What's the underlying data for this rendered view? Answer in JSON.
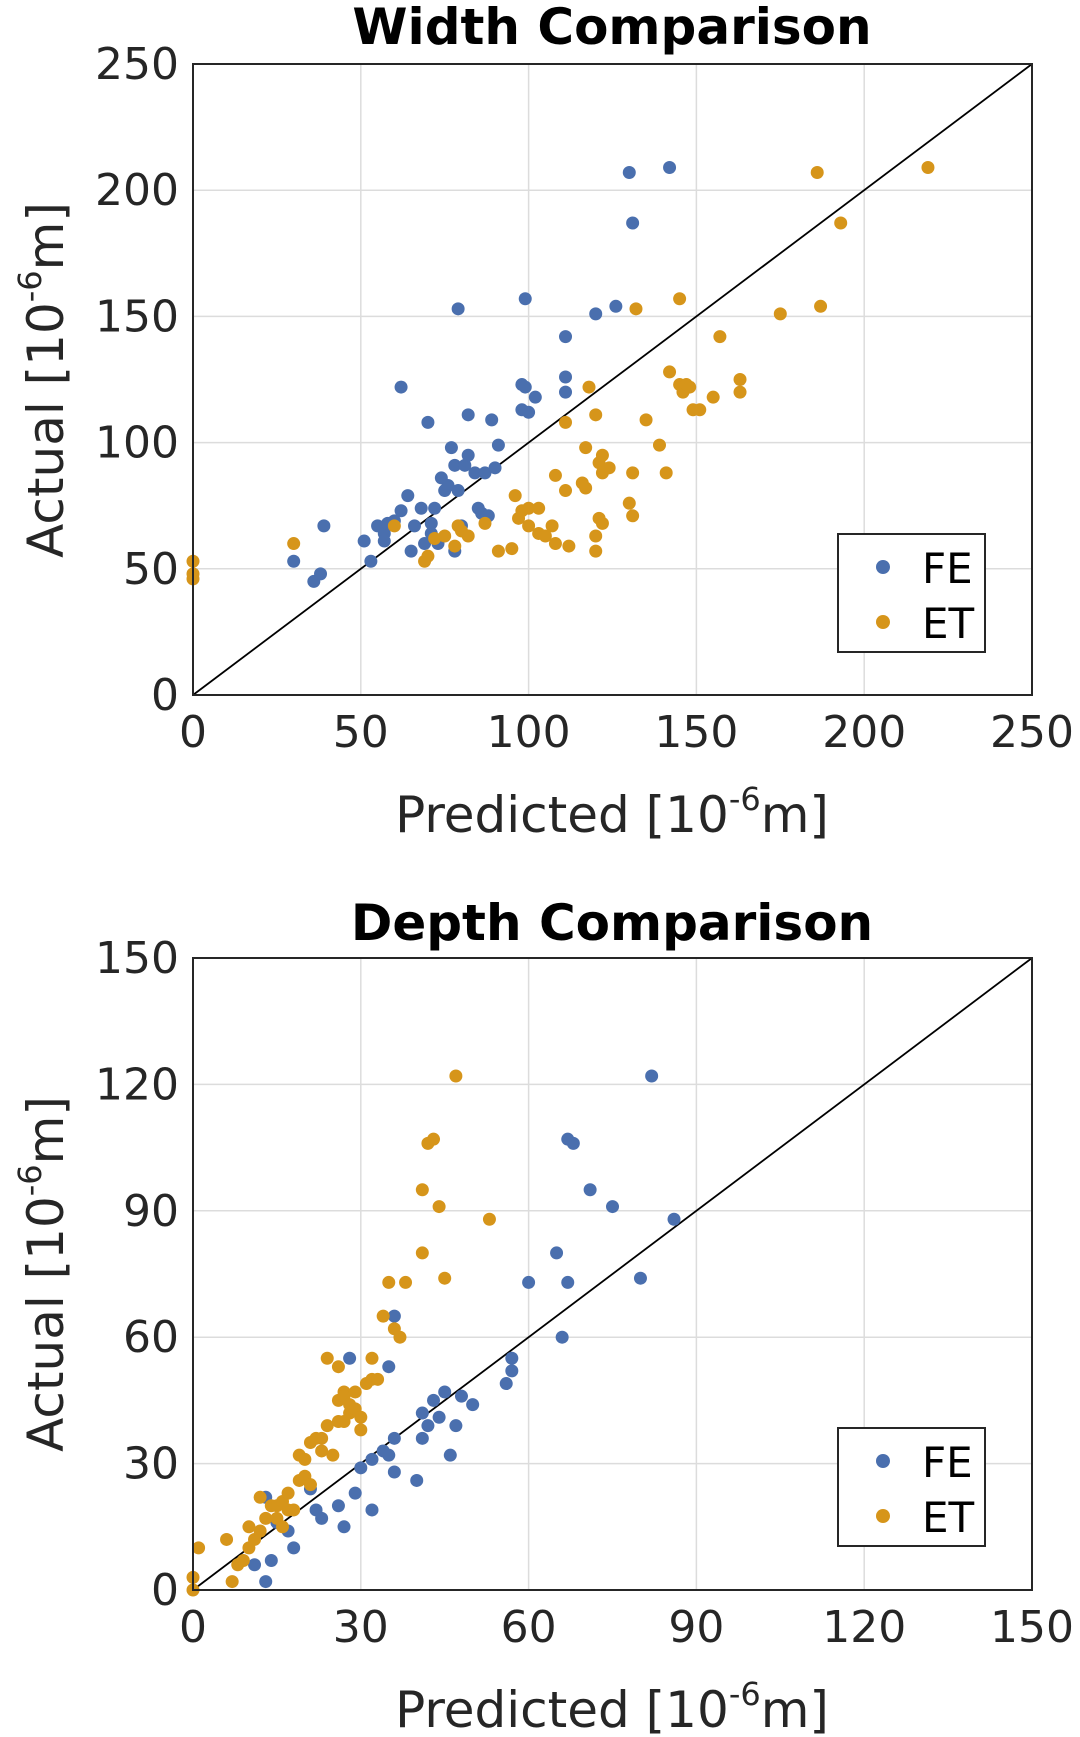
{
  "colors": {
    "FE": "#4a6fae",
    "ET": "#d6951a"
  },
  "chart_data": [
    {
      "type": "scatter",
      "title": "Width Comparison",
      "xlabel": "Predicted [10",
      "xlabel_sup": "-6",
      "xlabel_end": "m]",
      "ylabel": "Actual [10",
      "ylabel_sup": "-6",
      "ylabel_end": "m]",
      "xlim": [
        0,
        250
      ],
      "ylim": [
        0,
        250
      ],
      "xticks": [
        0,
        50,
        100,
        150,
        200,
        250
      ],
      "yticks": [
        0,
        50,
        100,
        150,
        200,
        250
      ],
      "grid": true,
      "reference_line": "y = x",
      "legend": {
        "position": "bottom-right",
        "entries": [
          "FE",
          "ET"
        ]
      },
      "series": [
        {
          "name": "FE",
          "color": "#4a6fae",
          "points": [
            [
              30,
              53
            ],
            [
              36,
              45
            ],
            [
              38,
              48
            ],
            [
              39,
              67
            ],
            [
              51,
              61
            ],
            [
              53,
              53
            ],
            [
              55,
              67
            ],
            [
              57,
              64
            ],
            [
              57,
              61
            ],
            [
              58,
              68
            ],
            [
              60,
              69
            ],
            [
              62,
              73
            ],
            [
              62,
              122
            ],
            [
              64,
              79
            ],
            [
              65,
              57
            ],
            [
              66,
              67
            ],
            [
              68,
              74
            ],
            [
              69,
              60
            ],
            [
              70,
              108
            ],
            [
              71,
              64
            ],
            [
              71,
              68
            ],
            [
              72,
              74
            ],
            [
              73,
              60
            ],
            [
              74,
              86
            ],
            [
              75,
              81
            ],
            [
              76,
              83
            ],
            [
              77,
              98
            ],
            [
              78,
              57
            ],
            [
              78,
              91
            ],
            [
              79,
              153
            ],
            [
              79,
              81
            ],
            [
              80,
              67
            ],
            [
              81,
              91
            ],
            [
              82,
              111
            ],
            [
              82,
              95
            ],
            [
              84,
              88
            ],
            [
              85,
              74
            ],
            [
              86,
              72
            ],
            [
              87,
              88
            ],
            [
              88,
              71
            ],
            [
              89,
              109
            ],
            [
              90,
              90
            ],
            [
              91,
              99
            ],
            [
              98,
              113
            ],
            [
              98,
              123
            ],
            [
              99,
              122
            ],
            [
              99,
              157
            ],
            [
              100,
              112
            ],
            [
              102,
              118
            ],
            [
              111,
              142
            ],
            [
              111,
              126
            ],
            [
              111,
              120
            ],
            [
              120,
              151
            ],
            [
              126,
              154
            ],
            [
              130,
              207
            ],
            [
              131,
              187
            ],
            [
              142,
              209
            ]
          ]
        },
        {
          "name": "ET",
          "color": "#d6951a",
          "points": [
            [
              0,
              53
            ],
            [
              0,
              48
            ],
            [
              0,
              46
            ],
            [
              30,
              60
            ],
            [
              60,
              67
            ],
            [
              69,
              53
            ],
            [
              70,
              55
            ],
            [
              72,
              62
            ],
            [
              75,
              63
            ],
            [
              78,
              59
            ],
            [
              79,
              67
            ],
            [
              80,
              65
            ],
            [
              82,
              63
            ],
            [
              87,
              68
            ],
            [
              91,
              57
            ],
            [
              95,
              58
            ],
            [
              96,
              79
            ],
            [
              97,
              70
            ],
            [
              98,
              73
            ],
            [
              100,
              74
            ],
            [
              100,
              67
            ],
            [
              103,
              64
            ],
            [
              103,
              74
            ],
            [
              105,
              63
            ],
            [
              107,
              67
            ],
            [
              108,
              60
            ],
            [
              108,
              87
            ],
            [
              111,
              81
            ],
            [
              111,
              108
            ],
            [
              112,
              59
            ],
            [
              116,
              84
            ],
            [
              117,
              98
            ],
            [
              117,
              82
            ],
            [
              118,
              122
            ],
            [
              120,
              57
            ],
            [
              120,
              63
            ],
            [
              120,
              111
            ],
            [
              121,
              92
            ],
            [
              121,
              70
            ],
            [
              122,
              68
            ],
            [
              122,
              88
            ],
            [
              122,
              95
            ],
            [
              124,
              90
            ],
            [
              130,
              76
            ],
            [
              131,
              88
            ],
            [
              131,
              71
            ],
            [
              132,
              153
            ],
            [
              135,
              109
            ],
            [
              139,
              99
            ],
            [
              141,
              88
            ],
            [
              142,
              128
            ],
            [
              145,
              157
            ],
            [
              145,
              123
            ],
            [
              146,
              120
            ],
            [
              147,
              123
            ],
            [
              148,
              122
            ],
            [
              149,
              113
            ],
            [
              151,
              113
            ],
            [
              155,
              118
            ],
            [
              157,
              142
            ],
            [
              163,
              125
            ],
            [
              163,
              120
            ],
            [
              175,
              151
            ],
            [
              186,
              207
            ],
            [
              187,
              154
            ],
            [
              193,
              187
            ],
            [
              219,
              209
            ]
          ]
        }
      ]
    },
    {
      "type": "scatter",
      "title": "Depth Comparison",
      "xlabel": "Predicted [10",
      "xlabel_sup": "-6",
      "xlabel_end": "m]",
      "ylabel": "Actual [10",
      "ylabel_sup": "-6",
      "ylabel_end": "m]",
      "xlim": [
        0,
        150
      ],
      "ylim": [
        0,
        150
      ],
      "xticks": [
        0,
        30,
        60,
        90,
        120,
        150
      ],
      "yticks": [
        0,
        30,
        60,
        90,
        120,
        150
      ],
      "grid": true,
      "reference_line": "y = x",
      "legend": {
        "position": "bottom-right",
        "entries": [
          "FE",
          "ET"
        ]
      },
      "series": [
        {
          "name": "FE",
          "color": "#4a6fae",
          "points": [
            [
              11,
              6
            ],
            [
              13,
              2
            ],
            [
              13,
              22
            ],
            [
              14,
              7
            ],
            [
              15,
              16
            ],
            [
              17,
              14
            ],
            [
              18,
              10
            ],
            [
              21,
              24
            ],
            [
              22,
              19
            ],
            [
              23,
              17
            ],
            [
              26,
              20
            ],
            [
              27,
              15
            ],
            [
              28,
              55
            ],
            [
              29,
              23
            ],
            [
              30,
              29
            ],
            [
              32,
              31
            ],
            [
              32,
              19
            ],
            [
              34,
              33
            ],
            [
              35,
              32
            ],
            [
              35,
              53
            ],
            [
              36,
              28
            ],
            [
              36,
              36
            ],
            [
              36,
              65
            ],
            [
              40,
              26
            ],
            [
              41,
              36
            ],
            [
              41,
              42
            ],
            [
              42,
              39
            ],
            [
              43,
              45
            ],
            [
              44,
              41
            ],
            [
              45,
              47
            ],
            [
              46,
              32
            ],
            [
              47,
              39
            ],
            [
              48,
              46
            ],
            [
              50,
              44
            ],
            [
              56,
              49
            ],
            [
              57,
              52
            ],
            [
              57,
              55
            ],
            [
              60,
              73
            ],
            [
              65,
              80
            ],
            [
              66,
              60
            ],
            [
              67,
              73
            ],
            [
              67,
              107
            ],
            [
              68,
              106
            ],
            [
              71,
              95
            ],
            [
              75,
              91
            ],
            [
              80,
              74
            ],
            [
              82,
              122
            ],
            [
              86,
              88
            ]
          ]
        },
        {
          "name": "ET",
          "color": "#d6951a",
          "points": [
            [
              0,
              0
            ],
            [
              0,
              3
            ],
            [
              1,
              10
            ],
            [
              6,
              12
            ],
            [
              7,
              2
            ],
            [
              8,
              6
            ],
            [
              9,
              7
            ],
            [
              10,
              10
            ],
            [
              10,
              15
            ],
            [
              11,
              12
            ],
            [
              12,
              14
            ],
            [
              12,
              22
            ],
            [
              13,
              17
            ],
            [
              14,
              20
            ],
            [
              15,
              17
            ],
            [
              15,
              20
            ],
            [
              16,
              21
            ],
            [
              16,
              15
            ],
            [
              17,
              23
            ],
            [
              17,
              19
            ],
            [
              18,
              19
            ],
            [
              19,
              26
            ],
            [
              19,
              32
            ],
            [
              20,
              31
            ],
            [
              20,
              27
            ],
            [
              21,
              25
            ],
            [
              21,
              35
            ],
            [
              22,
              36
            ],
            [
              23,
              36
            ],
            [
              23,
              33
            ],
            [
              24,
              39
            ],
            [
              24,
              55
            ],
            [
              25,
              32
            ],
            [
              26,
              40
            ],
            [
              26,
              45
            ],
            [
              26,
              53
            ],
            [
              27,
              47
            ],
            [
              27,
              46
            ],
            [
              27,
              40
            ],
            [
              28,
              42
            ],
            [
              28,
              44
            ],
            [
              29,
              47
            ],
            [
              29,
              43
            ],
            [
              30,
              41
            ],
            [
              30,
              38
            ],
            [
              31,
              49
            ],
            [
              32,
              50
            ],
            [
              32,
              55
            ],
            [
              33,
              50
            ],
            [
              34,
              65
            ],
            [
              35,
              73
            ],
            [
              36,
              62
            ],
            [
              37,
              60
            ],
            [
              38,
              73
            ],
            [
              41,
              95
            ],
            [
              41,
              80
            ],
            [
              42,
              106
            ],
            [
              43,
              107
            ],
            [
              44,
              91
            ],
            [
              45,
              74
            ],
            [
              47,
              122
            ],
            [
              53,
              88
            ]
          ]
        }
      ]
    }
  ]
}
